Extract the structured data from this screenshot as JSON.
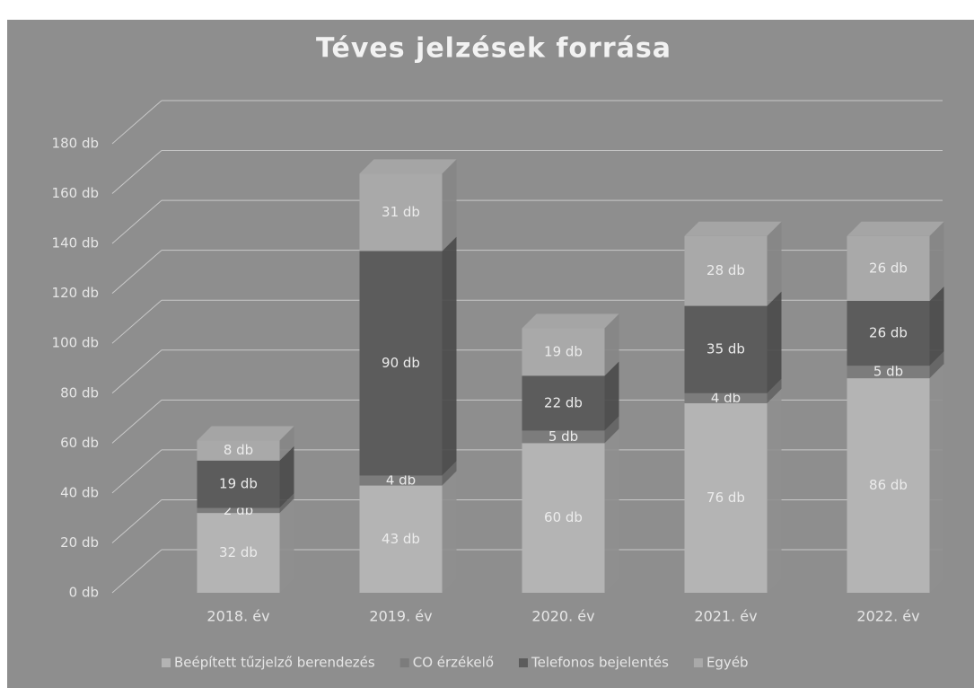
{
  "chart_data": {
    "type": "bar3d_stacked",
    "title": "Téves jelzések forrása",
    "categories": [
      "2018. év",
      "2019. év",
      "2020. év",
      "2021. év",
      "2022. év"
    ],
    "series": [
      {
        "name": "Beépített tűzjelző berendezés",
        "color": "#b4b4b4",
        "values": [
          32,
          43,
          60,
          76,
          86
        ],
        "value_labels": [
          "32 db",
          "43 db",
          "60 db",
          "76 db",
          "86 db"
        ]
      },
      {
        "name": "CO érzékelő",
        "color": "#7c7c7c",
        "values": [
          2,
          4,
          5,
          4,
          5
        ],
        "value_labels": [
          "2 db",
          "4 db",
          "5 db",
          "4 db",
          "5 db"
        ]
      },
      {
        "name": "Telefonos bejelentés",
        "color": "#5c5c5c",
        "values": [
          19,
          90,
          22,
          35,
          26
        ],
        "value_labels": [
          "19 db",
          "90 db",
          "22 db",
          "35 db",
          "26 db"
        ]
      },
      {
        "name": "Egyéb",
        "color": "#a9a9a9",
        "values": [
          8,
          31,
          19,
          28,
          26
        ],
        "value_labels": [
          "8 db",
          "31 db",
          "19 db",
          "28 db",
          "26 db"
        ]
      }
    ],
    "ylim": [
      0,
      180
    ],
    "yticks": [
      {
        "value": 0,
        "label": "0 db"
      },
      {
        "value": 20,
        "label": "20 db"
      },
      {
        "value": 40,
        "label": "40 db"
      },
      {
        "value": 60,
        "label": "60 db"
      },
      {
        "value": 80,
        "label": "80 db"
      },
      {
        "value": 100,
        "label": "100 db"
      },
      {
        "value": 120,
        "label": "120 db"
      },
      {
        "value": 140,
        "label": "140 db"
      },
      {
        "value": 160,
        "label": "160 db"
      },
      {
        "value": 180,
        "label": "180 db"
      }
    ],
    "grid": true,
    "legend": "bottom"
  }
}
